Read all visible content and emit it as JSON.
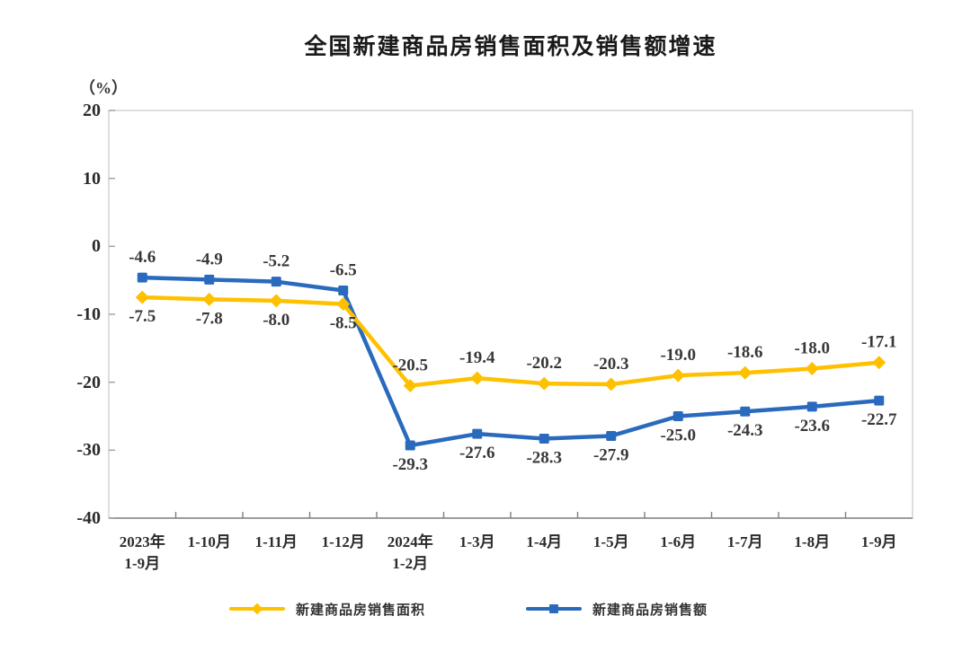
{
  "chart": {
    "title": "全国新建商品房销售面积及销售额增速",
    "unit_label": "（%）"
  },
  "chart_data": {
    "type": "line",
    "title": "全国新建商品房销售面积及销售额增速",
    "ylabel": "（%）",
    "ylim": [
      -40,
      20
    ],
    "y_ticks": [
      20,
      10,
      0,
      -10,
      -20,
      -30,
      -40
    ],
    "grid": false,
    "legend_position": "bottom",
    "categories": [
      "2023年\n1-9月",
      "1-10月",
      "1-11月",
      "1-12月",
      "2024年\n1-2月",
      "1-3月",
      "1-4月",
      "1-5月",
      "1-6月",
      "1-7月",
      "1-8月",
      "1-9月"
    ],
    "series": [
      {
        "name": "新建商品房销售面积",
        "color": "#FFC000",
        "marker": "diamond",
        "values": [
          -7.5,
          -7.8,
          -8.0,
          -8.5,
          -20.5,
          -19.4,
          -20.2,
          -20.3,
          -19.0,
          -18.6,
          -18.0,
          -17.1
        ],
        "labels": [
          "-7.5",
          "-7.8",
          "-8.0",
          "-8.5",
          "-20.5",
          "-19.4",
          "-20.2",
          "-20.3",
          "-19.0",
          "-18.6",
          "-18.0",
          "-17.1"
        ],
        "label_positions": [
          "below",
          "below",
          "below",
          "below",
          "above",
          "above",
          "above",
          "above",
          "above",
          "above",
          "above",
          "above"
        ]
      },
      {
        "name": "新建商品房销售额",
        "color": "#2A6ABE",
        "marker": "square",
        "values": [
          -4.6,
          -4.9,
          -5.2,
          -6.5,
          -29.3,
          -27.6,
          -28.3,
          -27.9,
          -25.0,
          -24.3,
          -23.6,
          -22.7
        ],
        "labels": [
          "-4.6",
          "-4.9",
          "-5.2",
          "-6.5",
          "-29.3",
          "-27.6",
          "-28.3",
          "-27.9",
          "-25.0",
          "-24.3",
          "-23.6",
          "-22.7"
        ],
        "label_positions": [
          "above",
          "above",
          "above",
          "above",
          "below",
          "below",
          "below",
          "below",
          "below",
          "below",
          "below",
          "below"
        ]
      }
    ],
    "axis_colors": {
      "frame": "#c9c9c9",
      "bottom_axis": "#7f7f7f",
      "y_tick": "#a0a0a0"
    }
  }
}
